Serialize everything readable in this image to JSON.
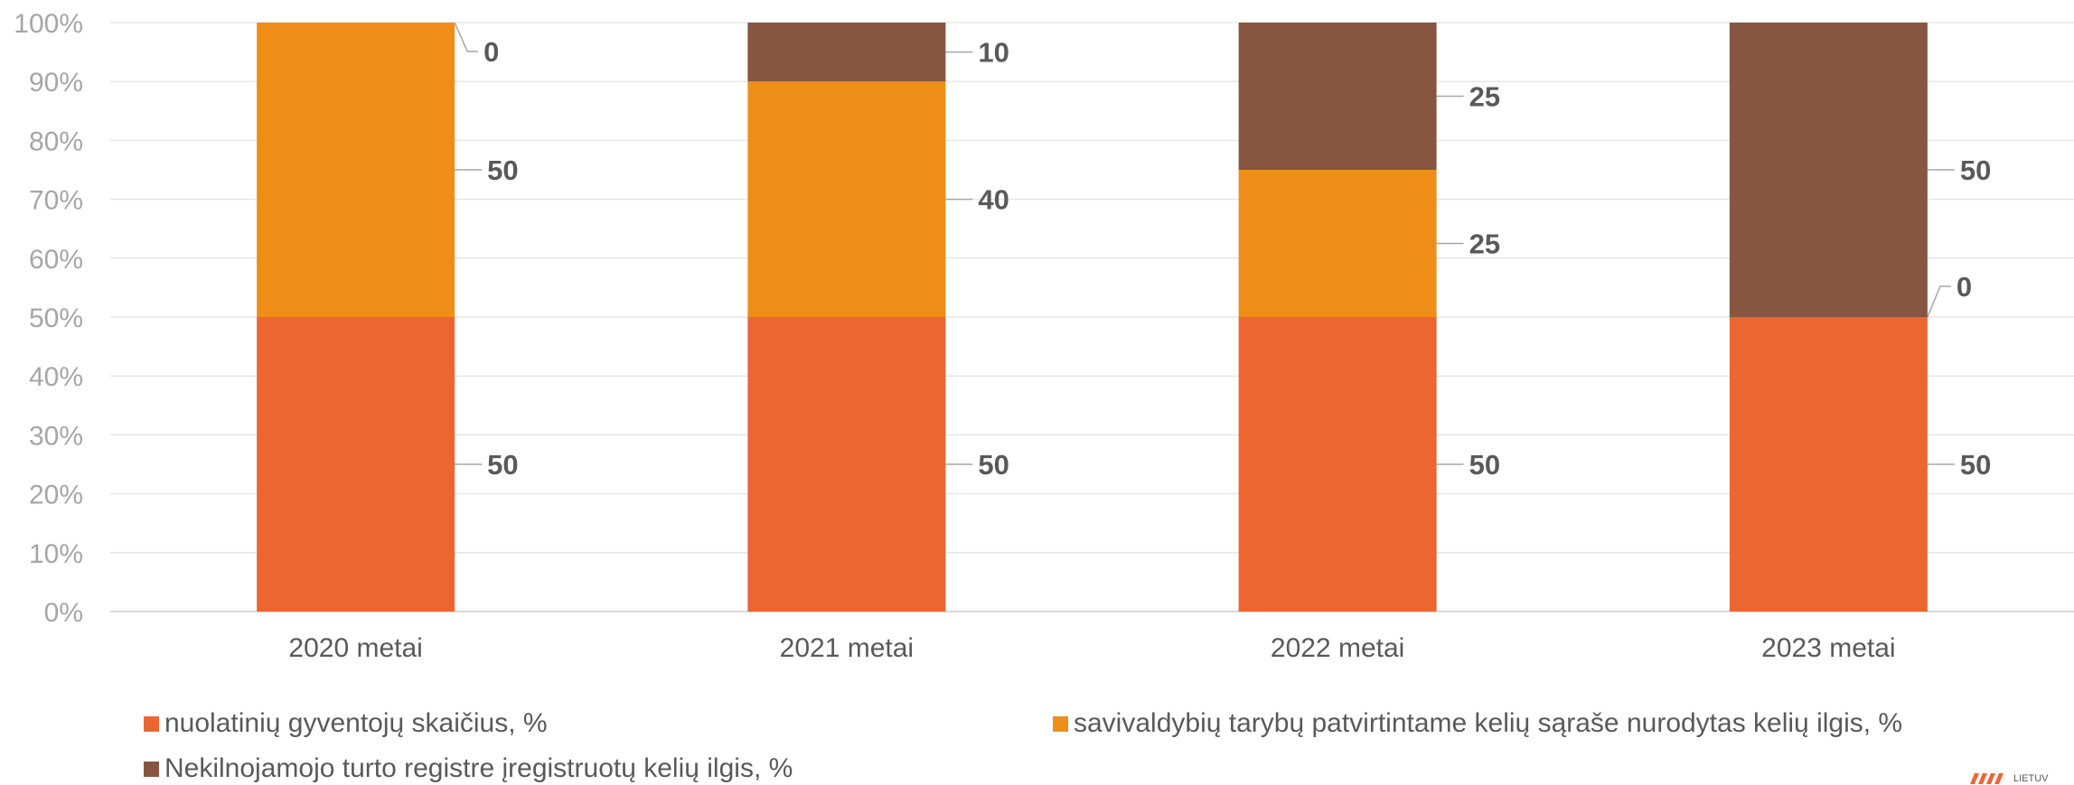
{
  "chart_data": {
    "type": "bar",
    "stacked": "percent",
    "categories": [
      "2020 metai",
      "2021 metai",
      "2022 metai",
      "2023 metai"
    ],
    "series": [
      {
        "name": "nuolatinių gyventojų skaičius, %",
        "values": [
          50,
          50,
          50,
          50
        ],
        "color": "#eb6631"
      },
      {
        "name": "savivaldybių tarybų patvirtintame kelių sąraše nurodytas kelių ilgis, %",
        "values": [
          50,
          40,
          25,
          0
        ],
        "color": "#ee8e18"
      },
      {
        "name": "Nekilnojamojo turto registre įregistruotų kelių ilgis, %",
        "values": [
          0,
          10,
          25,
          50
        ],
        "color": "#865640"
      }
    ],
    "y_ticks": [
      "0%",
      "10%",
      "20%",
      "30%",
      "40%",
      "50%",
      "60%",
      "70%",
      "80%",
      "90%",
      "100%"
    ],
    "ylim": [
      0,
      100
    ],
    "grid": true,
    "legend_position": "bottom"
  },
  "logo_text": "LIETUV"
}
